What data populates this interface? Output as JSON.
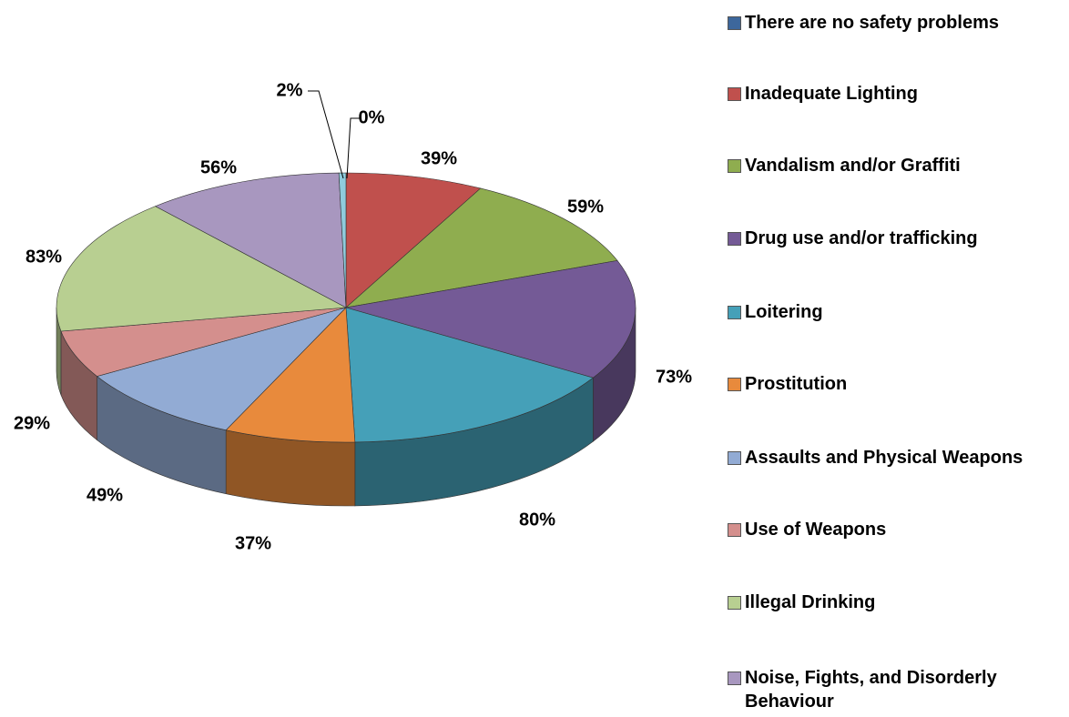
{
  "chart_data": {
    "type": "pie",
    "categories": [
      "There are no safety problems",
      "Inadequate Lighting",
      "Vandalism and/or Graffiti",
      "Drug use and/or trafficking",
      "Loitering",
      "Prostitution",
      "Assaults and Physical Weapons",
      "Use of Weapons",
      "Illegal Drinking",
      "Noise, Fights, and Disorderly Behaviour",
      null
    ],
    "values": [
      0,
      39,
      59,
      73,
      80,
      37,
      49,
      29,
      83,
      56,
      2
    ],
    "colors": [
      "#3d679c",
      "#c0504d",
      "#8fad4f",
      "#745a96",
      "#45a0b8",
      "#e88a3c",
      "#92abd4",
      "#d48f8d",
      "#b8cf91",
      "#a897bf",
      "#8fcbdc"
    ],
    "value_labels": [
      "0%",
      "39%",
      "59%",
      "73%",
      "80%",
      "37%",
      "49%",
      "29%",
      "83%",
      "56%",
      "2%"
    ],
    "legend": "right"
  }
}
